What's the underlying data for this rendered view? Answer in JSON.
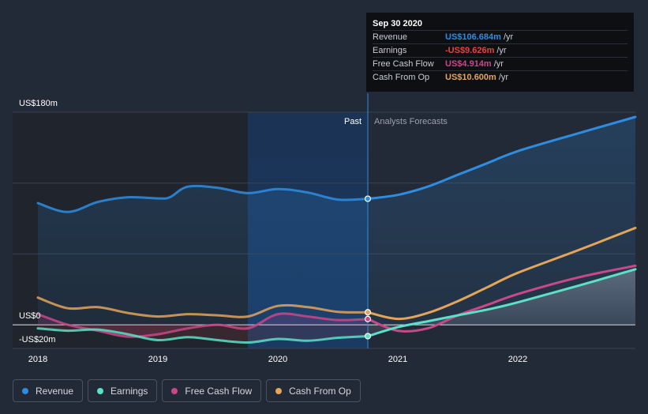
{
  "chart_data": {
    "type": "line",
    "title": "",
    "x_unit": "year",
    "xlim": [
      2018.0,
      2022.98
    ],
    "ylim": [
      -20,
      180
    ],
    "ytick_labels": [
      {
        "value": 180,
        "label": "US$180m"
      },
      {
        "value": 0,
        "label": "US$0"
      },
      {
        "value": -20,
        "label": "-US$20m"
      }
    ],
    "xticks": [
      {
        "value": 2018,
        "label": "2018"
      },
      {
        "value": 2019,
        "label": "2019"
      },
      {
        "value": 2020,
        "label": "2020"
      },
      {
        "value": 2021,
        "label": "2021"
      },
      {
        "value": 2022,
        "label": "2022"
      }
    ],
    "divider_x": 2020.75,
    "highlight_start_x": 2019.75,
    "past_label": "Past",
    "forecast_label": "Analysts Forecasts",
    "series": [
      {
        "name": "Revenue",
        "color": "#2e8de0",
        "fill": true,
        "past": [
          [
            2018.0,
            103
          ],
          [
            2018.25,
            95.5
          ],
          [
            2018.5,
            104
          ],
          [
            2018.75,
            108
          ],
          [
            2019.0,
            107
          ],
          [
            2019.1,
            108
          ],
          [
            2019.25,
            117
          ],
          [
            2019.5,
            116
          ],
          [
            2019.75,
            111.5
          ],
          [
            2020.0,
            115
          ],
          [
            2020.25,
            112
          ],
          [
            2020.5,
            106
          ],
          [
            2020.75,
            106.7
          ]
        ],
        "forecast": [
          [
            2020.75,
            106.7
          ],
          [
            2021.0,
            110
          ],
          [
            2021.25,
            117
          ],
          [
            2021.5,
            127
          ],
          [
            2021.75,
            137
          ],
          [
            2022.0,
            147
          ],
          [
            2022.5,
            162
          ],
          [
            2022.98,
            176
          ]
        ]
      },
      {
        "name": "Earnings",
        "color": "#5de0c8",
        "fill": false,
        "past": [
          [
            2018.0,
            -3
          ],
          [
            2018.25,
            -5
          ],
          [
            2018.5,
            -4
          ],
          [
            2018.75,
            -8
          ],
          [
            2019.0,
            -13
          ],
          [
            2019.25,
            -10.5
          ],
          [
            2019.5,
            -13
          ],
          [
            2019.75,
            -15
          ],
          [
            2020.0,
            -12
          ],
          [
            2020.25,
            -13.5
          ],
          [
            2020.5,
            -11
          ],
          [
            2020.75,
            -9.6
          ]
        ],
        "forecast": [
          [
            2020.75,
            -9.6
          ],
          [
            2021.0,
            -2
          ],
          [
            2021.25,
            3
          ],
          [
            2021.5,
            8
          ],
          [
            2021.75,
            13
          ],
          [
            2022.0,
            19
          ],
          [
            2022.5,
            33
          ],
          [
            2022.98,
            47
          ]
        ]
      },
      {
        "name": "Free Cash Flow",
        "color": "#c9488a",
        "fill": false,
        "past": [
          [
            2018.0,
            9
          ],
          [
            2018.25,
            0
          ],
          [
            2018.5,
            -5
          ],
          [
            2018.75,
            -10
          ],
          [
            2019.0,
            -8
          ],
          [
            2019.25,
            -3
          ],
          [
            2019.5,
            0
          ],
          [
            2019.75,
            -3
          ],
          [
            2020.0,
            9
          ],
          [
            2020.25,
            7
          ],
          [
            2020.5,
            4
          ],
          [
            2020.75,
            4.9
          ]
        ],
        "forecast": [
          [
            2020.75,
            4.9
          ],
          [
            2021.0,
            -5
          ],
          [
            2021.25,
            -3
          ],
          [
            2021.5,
            8
          ],
          [
            2021.75,
            17
          ],
          [
            2022.0,
            26
          ],
          [
            2022.5,
            40
          ],
          [
            2022.98,
            50
          ]
        ]
      },
      {
        "name": "Cash From Op",
        "color": "#e3a55a",
        "fill": false,
        "past": [
          [
            2018.0,
            23
          ],
          [
            2018.25,
            14
          ],
          [
            2018.5,
            15
          ],
          [
            2018.75,
            10
          ],
          [
            2019.0,
            7
          ],
          [
            2019.25,
            9
          ],
          [
            2019.5,
            8
          ],
          [
            2019.75,
            7
          ],
          [
            2020.0,
            16
          ],
          [
            2020.25,
            15
          ],
          [
            2020.5,
            11
          ],
          [
            2020.75,
            10.6
          ]
        ],
        "forecast": [
          [
            2020.75,
            10.6
          ],
          [
            2021.0,
            5
          ],
          [
            2021.25,
            10
          ],
          [
            2021.5,
            20
          ],
          [
            2021.75,
            32
          ],
          [
            2022.0,
            44
          ],
          [
            2022.5,
            63
          ],
          [
            2022.98,
            82
          ]
        ]
      }
    ],
    "highlight_points": [
      {
        "series": "Revenue",
        "x": 2020.75,
        "y": 106.7
      },
      {
        "series": "Cash From Op",
        "x": 2020.75,
        "y": 10.6
      },
      {
        "series": "Free Cash Flow",
        "x": 2020.75,
        "y": 4.9
      },
      {
        "series": "Earnings",
        "x": 2020.75,
        "y": -9.6
      }
    ]
  },
  "tooltip": {
    "date": "Sep 30 2020",
    "rows": [
      {
        "label": "Revenue",
        "value": "US$106.684m",
        "unit": "/yr",
        "color": "#2e8de0"
      },
      {
        "label": "Earnings",
        "value": "-US$9.626m",
        "unit": "/yr",
        "color": "#e8453c"
      },
      {
        "label": "Free Cash Flow",
        "value": "US$4.914m",
        "unit": "/yr",
        "color": "#c9488a"
      },
      {
        "label": "Cash From Op",
        "value": "US$10.600m",
        "unit": "/yr",
        "color": "#e3a55a"
      }
    ]
  },
  "legend": [
    {
      "label": "Revenue",
      "color": "#2e8de0"
    },
    {
      "label": "Earnings",
      "color": "#5de0c8"
    },
    {
      "label": "Free Cash Flow",
      "color": "#c9488a"
    },
    {
      "label": "Cash From Op",
      "color": "#e3a55a"
    }
  ]
}
